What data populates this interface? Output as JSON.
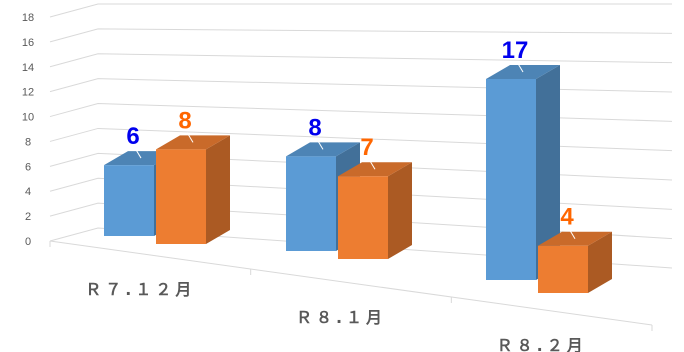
{
  "chart_data": {
    "type": "bar",
    "subtype": "3d-clustered-column",
    "title": "",
    "xlabel": "",
    "ylabel": "",
    "ylim": [
      0,
      18
    ],
    "ytick_step": 2,
    "grid": true,
    "legend": "none",
    "categories": [
      "Ｒ７.１２月",
      "Ｒ８.１月",
      "Ｒ８.２月"
    ],
    "series": [
      {
        "values": [
          6,
          8,
          17
        ],
        "value_labels": [
          "6",
          "8",
          "17"
        ],
        "color": "#5b9bd5",
        "label_color": "#0000ee"
      },
      {
        "values": [
          8,
          7,
          4
        ],
        "value_labels": [
          "8",
          "7",
          "4"
        ],
        "color": "#ed7d31",
        "label_color": "#ff6600"
      }
    ]
  }
}
